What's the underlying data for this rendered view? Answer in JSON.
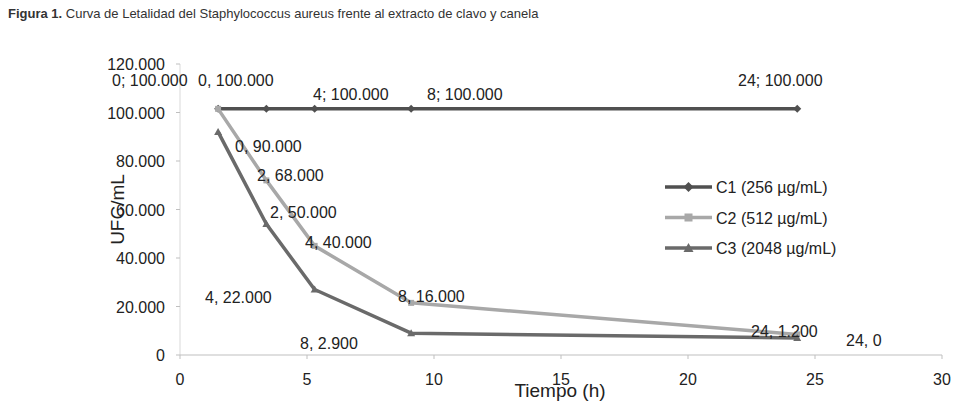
{
  "chart_data": {
    "type": "line",
    "title": "Figura 1. Curva de Letalidad del Staphylococcus aureus frente al extracto de clavo y canela",
    "x_label": "Tiempo (h)",
    "y_label": "UFC/mL",
    "x": [
      1.5,
      3.4,
      5.3,
      9.1,
      24.3
    ],
    "series": [
      {
        "name": "C1 (256 µg/mL)",
        "color": "#505050",
        "marker": "diamond",
        "values": [
          101500,
          101500,
          101500,
          101500,
          101500
        ]
      },
      {
        "name": "C2 (512 µg/mL)",
        "color": "#a8a8a8",
        "marker": "square",
        "values": [
          101500,
          72000,
          45000,
          21500,
          8500
        ]
      },
      {
        "name": "C3 (2048 µg/mL)",
        "color": "#6a6a6a",
        "marker": "triangle",
        "values": [
          92000,
          54000,
          27000,
          9000,
          7000
        ]
      }
    ],
    "xlim": [
      0,
      30
    ],
    "ylim": [
      0,
      120000
    ],
    "xticks": [
      0,
      5,
      10,
      15,
      20,
      25,
      30
    ],
    "yticks": [
      0,
      {
        "value": 20000,
        "label": "20.000"
      },
      {
        "value": 40000,
        "label": "40.000"
      },
      {
        "value": 60000,
        "label": "60.000"
      },
      {
        "value": 80000,
        "label": "80.000"
      },
      {
        "value": 100000,
        "label": "100.000"
      },
      {
        "value": 120000,
        "label": "120.000"
      }
    ],
    "grid": false,
    "legend": "center right",
    "annotations": [
      "0; 100.000",
      "0, 100.000",
      "4; 100.000",
      "8; 100.000",
      "24; 100.000",
      "0, 90.000",
      "2, 68.000",
      "2, 50.000",
      "4, 40.000",
      "4, 22.000",
      "8, 16.000",
      "8, 2.900",
      "24, 1.200",
      "24, 0"
    ]
  }
}
